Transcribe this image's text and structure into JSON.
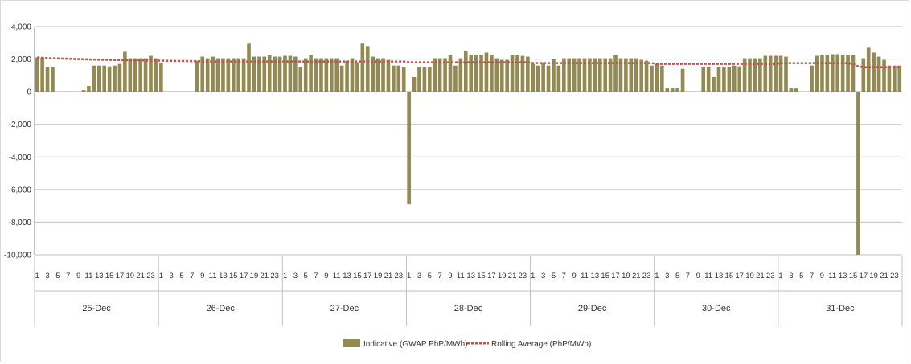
{
  "chart_data": {
    "type": "bar",
    "title": "",
    "xlabel": "",
    "ylabel": "",
    "ylim": [
      -10000,
      4000
    ],
    "yticks": [
      4000,
      2000,
      0,
      -2000,
      -4000,
      -6000,
      -8000,
      -10000
    ],
    "ytick_labels": [
      "4,000",
      "2,000",
      "0",
      "-2,000",
      "-4,000",
      "-6,000",
      "-8,000",
      "-10,000"
    ],
    "hour_tick_labels": [
      "1",
      "3",
      "5",
      "7",
      "9",
      "11",
      "13",
      "15",
      "17",
      "19",
      "21",
      "23"
    ],
    "days": [
      "25-Dec",
      "26-Dec",
      "27-Dec",
      "28-Dec",
      "29-Dec",
      "30-Dec",
      "31-Dec"
    ],
    "hours_per_day": 24,
    "grid": true,
    "legend_position": "bottom",
    "colors": {
      "bar": "#938953",
      "rolling": "#c0504d",
      "grid": "#bfbfbf",
      "axis": "#7f7f7f"
    },
    "series": [
      {
        "name": "Indicative (GWAP PhP/MWh)",
        "type": "bar",
        "values": [
          2100,
          2100,
          1500,
          1500,
          0,
          0,
          0,
          0,
          0,
          100,
          350,
          1600,
          1600,
          1600,
          1550,
          1600,
          1700,
          2450,
          2050,
          2050,
          2050,
          2050,
          2200,
          2050,
          1750,
          0,
          0,
          0,
          0,
          0,
          0,
          1900,
          2150,
          2050,
          2150,
          2050,
          2050,
          2050,
          2050,
          2050,
          2050,
          2950,
          2150,
          2150,
          2150,
          2250,
          2150,
          2150,
          2200,
          2200,
          2150,
          1500,
          2050,
          2250,
          2050,
          2050,
          2050,
          2050,
          2050,
          1600,
          1900,
          2050,
          1800,
          2950,
          2800,
          2150,
          2050,
          2050,
          1950,
          1600,
          1600,
          1500,
          -6900,
          900,
          1500,
          1500,
          1500,
          2050,
          2050,
          2050,
          2250,
          1600,
          2050,
          2500,
          2250,
          2250,
          2250,
          2400,
          2250,
          2050,
          1950,
          1950,
          2250,
          2250,
          2200,
          2150,
          1700,
          1600,
          1800,
          1600,
          2000,
          1600,
          2050,
          2050,
          2050,
          2050,
          2050,
          2050,
          2050,
          2050,
          2050,
          2050,
          2250,
          2050,
          2050,
          2050,
          2050,
          1950,
          1900,
          1600,
          1700,
          1600,
          200,
          200,
          200,
          1400,
          0,
          0,
          0,
          1500,
          1500,
          900,
          1500,
          1500,
          1500,
          1600,
          1550,
          2050,
          2050,
          2050,
          2050,
          2200,
          2200,
          2200,
          2200,
          2150,
          200,
          200,
          0,
          0,
          1600,
          2200,
          2250,
          2250,
          2300,
          2300,
          2250,
          2250,
          2250,
          -10000,
          2050,
          2700,
          2400,
          2150,
          1950,
          1600,
          1600,
          1600
        ]
      },
      {
        "name": "Rolling Average (PhP/MWh)",
        "type": "line",
        "style": "dotted",
        "values_by_day_start": [
          2100,
          1900,
          1850,
          1800,
          1750,
          1700,
          1750
        ],
        "values": [
          2100,
          2080,
          2060,
          2050,
          2040,
          2030,
          2020,
          2010,
          2000,
          1990,
          1980,
          1970,
          1960,
          1955,
          1950,
          1945,
          1940,
          1935,
          1930,
          1925,
          1920,
          1915,
          1910,
          1905,
          1900,
          1895,
          1890,
          1885,
          1880,
          1875,
          1870,
          1865,
          1860,
          1855,
          1850,
          1850,
          1850,
          1850,
          1850,
          1850,
          1850,
          1850,
          1850,
          1850,
          1850,
          1850,
          1850,
          1850,
          1850,
          1850,
          1850,
          1850,
          1850,
          1850,
          1850,
          1850,
          1850,
          1850,
          1850,
          1850,
          1850,
          1850,
          1850,
          1850,
          1850,
          1850,
          1850,
          1850,
          1850,
          1850,
          1850,
          1850,
          1800,
          1800,
          1800,
          1800,
          1800,
          1800,
          1800,
          1800,
          1800,
          1800,
          1800,
          1800,
          1800,
          1800,
          1800,
          1800,
          1800,
          1800,
          1800,
          1800,
          1800,
          1800,
          1800,
          1800,
          1750,
          1750,
          1750,
          1750,
          1750,
          1750,
          1750,
          1750,
          1750,
          1750,
          1750,
          1750,
          1750,
          1750,
          1750,
          1750,
          1750,
          1750,
          1750,
          1750,
          1750,
          1750,
          1750,
          1750,
          1700,
          1700,
          1700,
          1700,
          1700,
          1700,
          1700,
          1700,
          1700,
          1700,
          1700,
          1700,
          1700,
          1700,
          1700,
          1700,
          1700,
          1700,
          1700,
          1700,
          1700,
          1700,
          1700,
          1700,
          1750,
          1750,
          1750,
          1750,
          1750,
          1750,
          1750,
          1750,
          1750,
          1750,
          1750,
          1750,
          1750,
          1750,
          1700,
          1550,
          1500,
          1500,
          1500,
          1500,
          1500,
          1500,
          1500,
          1500
        ]
      }
    ]
  }
}
